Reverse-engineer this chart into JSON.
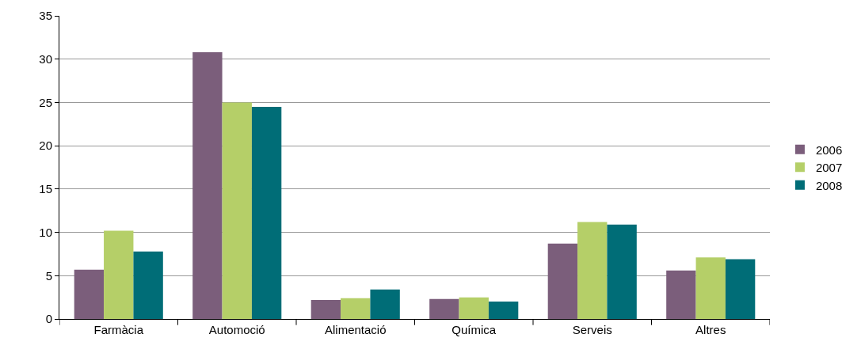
{
  "chart_data": {
    "type": "bar",
    "categories": [
      "Farmàcia",
      "Automoció",
      "Alimentació",
      "Química",
      "Serveis",
      "Altres"
    ],
    "series": [
      {
        "name": "2006",
        "color": "#7b5e7b",
        "values": [
          5.7,
          30.8,
          2.2,
          2.3,
          8.7,
          5.6
        ]
      },
      {
        "name": "2007",
        "color": "#b5cf68",
        "values": [
          10.2,
          25.0,
          2.4,
          2.5,
          11.2,
          7.1
        ]
      },
      {
        "name": "2008",
        "color": "#006d77",
        "values": [
          7.8,
          24.5,
          3.4,
          2.0,
          10.9,
          6.9
        ]
      }
    ],
    "ylim": [
      0,
      35
    ],
    "yticks": [
      0,
      5,
      10,
      15,
      20,
      25,
      30,
      35
    ],
    "grid": "y",
    "legend": "right"
  }
}
